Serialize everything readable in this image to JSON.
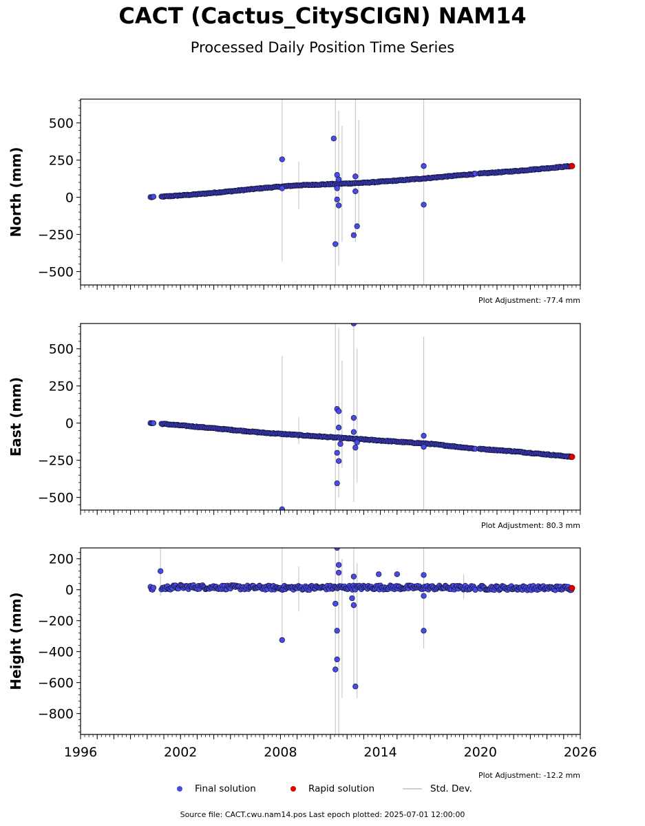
{
  "title": "CACT (Cactus_CitySCIGN) NAM14",
  "subtitle": "Processed Daily Position Time Series",
  "legend": {
    "final_label": "Final solution",
    "rapid_label": "Rapid solution",
    "std_label": "Std. Dev."
  },
  "source_text": "Source file: CACT.cwu.nam14.pos  Last epoch plotted: 2025-07-01 12:00:00",
  "colors": {
    "final": "#4a4ae6",
    "rapid": "#e00000",
    "std": "#c8c8c8",
    "edge": "#14143c"
  },
  "chart_data": [
    {
      "type": "scatter",
      "ylabel": "North (mm)",
      "adjustment": "Plot Adjustment: -77.4 mm",
      "xlim": [
        1996,
        2026
      ],
      "ylim": [
        -590,
        660
      ],
      "yticks": [
        -500,
        -250,
        0,
        250,
        500
      ],
      "ytick_labels": [
        "−500",
        "−250",
        "0",
        "250",
        "500"
      ],
      "xticks": [
        1996,
        2002,
        2008,
        2014,
        2020,
        2026
      ],
      "xtick_labels": [],
      "trend": [
        [
          2000.2,
          0
        ],
        [
          2000.8,
          3
        ],
        [
          2003,
          20
        ],
        [
          2005,
          40
        ],
        [
          2007,
          62
        ],
        [
          2009,
          80
        ],
        [
          2011,
          88
        ],
        [
          2013,
          97
        ],
        [
          2015,
          112
        ],
        [
          2017,
          130
        ],
        [
          2019.5,
          155
        ],
        [
          2022,
          175
        ],
        [
          2025.5,
          210
        ]
      ],
      "noise": 3,
      "gaps": [
        [
          2000.4,
          2000.8
        ],
        [
          2019.7,
          2019.9
        ]
      ],
      "std_base": 6,
      "std_bars": [
        [
          2008.1,
          -430,
          660
        ],
        [
          2009.1,
          -80,
          240
        ],
        [
          2011.3,
          -590,
          660
        ],
        [
          2011.5,
          -460,
          580
        ],
        [
          2011.7,
          -300,
          480
        ],
        [
          2012.5,
          -300,
          660
        ],
        [
          2012.7,
          -200,
          520
        ],
        [
          2016.6,
          -590,
          660
        ],
        [
          2016.6,
          -150,
          500
        ]
      ],
      "outliers": [
        [
          2008.1,
          255
        ],
        [
          2011.2,
          395
        ],
        [
          2011.3,
          -315
        ],
        [
          2011.4,
          -15
        ],
        [
          2011.5,
          -55
        ],
        [
          2011.4,
          150
        ],
        [
          2011.5,
          120
        ],
        [
          2011.4,
          60
        ],
        [
          2012.4,
          -255
        ],
        [
          2012.5,
          40
        ],
        [
          2012.6,
          -195
        ],
        [
          2012.5,
          140
        ],
        [
          2016.6,
          210
        ],
        [
          2016.6,
          -50
        ],
        [
          2008.1,
          60
        ]
      ],
      "rapid": [
        [
          2025.5,
          210
        ]
      ]
    },
    {
      "type": "scatter",
      "ylabel": "East (mm)",
      "adjustment": "Plot Adjustment: 80.3 mm",
      "xlim": [
        1996,
        2026
      ],
      "ylim": [
        -585,
        670
      ],
      "yticks": [
        -500,
        -250,
        0,
        250,
        500
      ],
      "ytick_labels": [
        "−500",
        "−250",
        "0",
        "250",
        "500"
      ],
      "xticks": [
        1996,
        2002,
        2008,
        2014,
        2020,
        2026
      ],
      "xtick_labels": [],
      "trend": [
        [
          2000.2,
          0
        ],
        [
          2000.8,
          -4
        ],
        [
          2003,
          -25
        ],
        [
          2005,
          -45
        ],
        [
          2007,
          -65
        ],
        [
          2009,
          -80
        ],
        [
          2011,
          -95
        ],
        [
          2013,
          -110
        ],
        [
          2015,
          -125
        ],
        [
          2017,
          -140
        ],
        [
          2019.5,
          -170
        ],
        [
          2022,
          -190
        ],
        [
          2025.5,
          -227
        ]
      ],
      "noise": 3,
      "gaps": [
        [
          2000.4,
          2000.8
        ],
        [
          2019.7,
          2019.9
        ]
      ],
      "std_base": 6,
      "std_bars": [
        [
          2008.1,
          -585,
          450
        ],
        [
          2009.1,
          -140,
          40
        ],
        [
          2011.3,
          -585,
          670
        ],
        [
          2011.5,
          -500,
          640
        ],
        [
          2011.7,
          -300,
          420
        ],
        [
          2012.4,
          -530,
          670
        ],
        [
          2012.6,
          -400,
          500
        ],
        [
          2016.6,
          -585,
          580
        ]
      ],
      "outliers": [
        [
          2008.1,
          -580
        ],
        [
          2011.4,
          -405
        ],
        [
          2011.5,
          -255
        ],
        [
          2011.4,
          -200
        ],
        [
          2011.6,
          -140
        ],
        [
          2011.4,
          95
        ],
        [
          2011.5,
          80
        ],
        [
          2011.5,
          -30
        ],
        [
          2012.4,
          670
        ],
        [
          2012.4,
          35
        ],
        [
          2012.5,
          -165
        ],
        [
          2012.6,
          -130
        ],
        [
          2012.4,
          -60
        ],
        [
          2016.6,
          -85
        ],
        [
          2016.6,
          -160
        ]
      ],
      "rapid": [
        [
          2025.5,
          -227
        ]
      ]
    },
    {
      "type": "scatter",
      "ylabel": "Height (mm)",
      "adjustment": "Plot Adjustment: -12.2 mm",
      "xlim": [
        1996,
        2026
      ],
      "ylim": [
        -935,
        270
      ],
      "yticks": [
        -800,
        -600,
        -400,
        -200,
        0,
        200
      ],
      "ytick_labels": [
        "−800",
        "−600",
        "−400",
        "−200",
        "0",
        "200"
      ],
      "xticks": [
        1996,
        2002,
        2008,
        2014,
        2020,
        2026
      ],
      "xtick_labels": [
        "1996",
        "2002",
        "2008",
        "2014",
        "2020",
        "2026"
      ],
      "trend": [
        [
          2000.2,
          5
        ],
        [
          2002,
          18
        ],
        [
          2008,
          12
        ],
        [
          2014,
          15
        ],
        [
          2020,
          12
        ],
        [
          2025.5,
          10
        ]
      ],
      "noise": 14,
      "gaps": [
        [
          2000.4,
          2000.8
        ],
        [
          2019.7,
          2019.9
        ]
      ],
      "std_base": 12,
      "std_bars": [
        [
          2000.8,
          -40,
          270
        ],
        [
          2008.1,
          -300,
          270
        ],
        [
          2009.1,
          -140,
          150
        ],
        [
          2011.3,
          -935,
          270
        ],
        [
          2011.5,
          -935,
          270
        ],
        [
          2011.7,
          -700,
          200
        ],
        [
          2012.4,
          -620,
          270
        ],
        [
          2012.6,
          -700,
          170
        ],
        [
          2016.6,
          -380,
          270
        ],
        [
          2019.0,
          -60,
          100
        ]
      ],
      "outliers": [
        [
          2000.8,
          120
        ],
        [
          2008.1,
          -325
        ],
        [
          2011.3,
          -515
        ],
        [
          2011.4,
          -450
        ],
        [
          2011.4,
          -265
        ],
        [
          2011.3,
          -90
        ],
        [
          2011.4,
          270
        ],
        [
          2011.5,
          160
        ],
        [
          2011.5,
          110
        ],
        [
          2012.5,
          -625
        ],
        [
          2012.4,
          -100
        ],
        [
          2012.3,
          -55
        ],
        [
          2012.4,
          85
        ],
        [
          2013.9,
          100
        ],
        [
          2015.0,
          100
        ],
        [
          2016.6,
          95
        ],
        [
          2016.6,
          -265
        ],
        [
          2016.6,
          -40
        ]
      ],
      "rapid": [
        [
          2025.5,
          10
        ]
      ]
    }
  ]
}
